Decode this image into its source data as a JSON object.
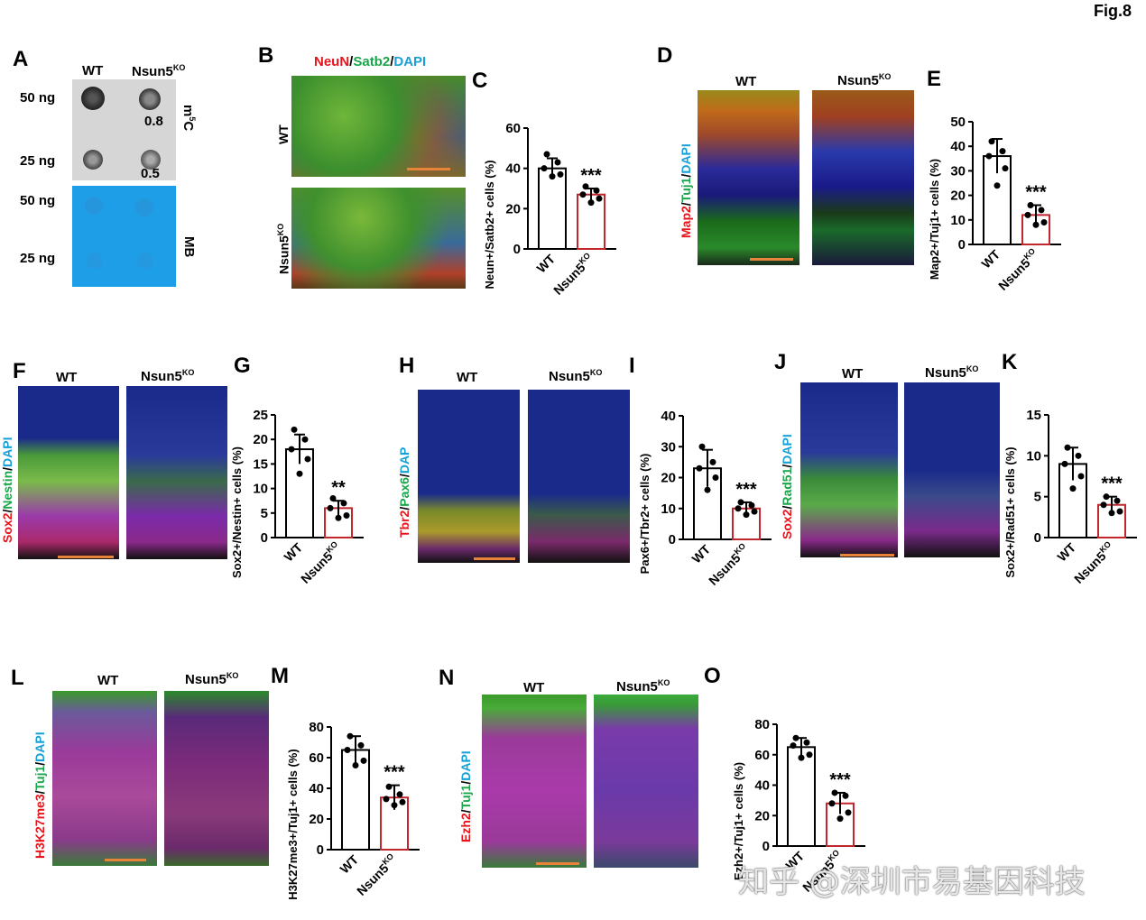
{
  "figure_label": "Fig.8",
  "panels": {
    "A": {
      "letter": "A",
      "col_wt": "WT",
      "col_ko": "Nsun5",
      "ko_sup": "KO",
      "row1": "50 ng",
      "row2": "25 ng",
      "row3": "50 ng",
      "row4": "25 ng",
      "val1": "0.8",
      "val2": "0.5",
      "side1": "m",
      "side1_sup": "5",
      "side1_tail": "C",
      "side2": "MB"
    },
    "B": {
      "letter": "B",
      "stain_red": "NeuN",
      "stain_green": "Satb2",
      "stain_blue": "DAPI",
      "row1": "WT",
      "row2": "Nsun5",
      "row2_sup": "KO"
    },
    "C": {
      "letter": "C"
    },
    "D": {
      "letter": "D",
      "col_wt": "WT",
      "col_ko": "Nsun5",
      "ko_sup": "KO",
      "stain_red": "Map2",
      "stain_green": "Tuj1",
      "stain_blue": "DAPI"
    },
    "E": {
      "letter": "E"
    },
    "F": {
      "letter": "F",
      "col_wt": "WT",
      "col_ko": "Nsun5",
      "ko_sup": "KO",
      "stain_red": "Sox2",
      "stain_green": "Nestin",
      "stain_blue": "DAPI"
    },
    "G": {
      "letter": "G"
    },
    "H": {
      "letter": "H",
      "col_wt": "WT",
      "col_ko": "Nsun5",
      "ko_sup": "KO",
      "stain_red": "Tbr2",
      "stain_green": "Pax6",
      "stain_blue": "DAP"
    },
    "I": {
      "letter": "I"
    },
    "J": {
      "letter": "J",
      "col_wt": "WT",
      "col_ko": "Nsun5",
      "ko_sup": "KO",
      "stain_red": "Sox2",
      "stain_green": "Rad51",
      "stain_blue": "DAPI"
    },
    "K": {
      "letter": "K"
    },
    "L": {
      "letter": "L",
      "col_wt": "WT",
      "col_ko": "Nsun5",
      "ko_sup": "KO",
      "stain_red": "H3K27me3",
      "stain_green": "Tuj1",
      "stain_blue": "DAPI"
    },
    "M": {
      "letter": "M"
    },
    "N": {
      "letter": "N",
      "col_wt": "WT",
      "col_ko": "Nsun5",
      "ko_sup": "KO",
      "stain_red": "Ezh2",
      "stain_green": "Tuj1",
      "stain_blue": "DAPI"
    },
    "O": {
      "letter": "O"
    }
  },
  "watermark": "知乎 @深圳市易基因科技",
  "colors": {
    "red": "#e8141b",
    "green": "#1aa64a",
    "blue": "#16a0d8",
    "ko_bar": "#c0272d",
    "scalebar": "#e8833a"
  },
  "chart_data": [
    {
      "id": "C",
      "type": "bar",
      "categories": [
        "WT",
        "Nsun5KO"
      ],
      "values": [
        40,
        27
      ],
      "error": [
        5,
        3
      ],
      "points": [
        [
          47,
          43,
          40,
          37,
          36
        ],
        [
          31,
          29,
          27,
          25,
          23
        ]
      ],
      "ylabel": "Neun+/Satb2+ cells (%)",
      "ylim": [
        0,
        60
      ],
      "ticks": [
        0,
        20,
        40,
        60
      ],
      "significance": "***"
    },
    {
      "id": "E",
      "type": "bar",
      "categories": [
        "WT",
        "Nsun5KO"
      ],
      "values": [
        36,
        12
      ],
      "error": [
        7,
        4
      ],
      "points": [
        [
          42,
          38,
          36,
          31,
          24
        ],
        [
          16,
          14,
          12,
          9,
          8
        ]
      ],
      "ylabel": "Map2+/Tuj1+ cells (%)",
      "ylim": [
        0,
        50
      ],
      "ticks": [
        0,
        10,
        20,
        30,
        40,
        50
      ],
      "significance": "***"
    },
    {
      "id": "G",
      "type": "bar",
      "categories": [
        "WT",
        "Nsun5KO"
      ],
      "values": [
        18,
        6
      ],
      "error": [
        3,
        1.5
      ],
      "points": [
        [
          22,
          20,
          18,
          16,
          13
        ],
        [
          8,
          7,
          6,
          4.5,
          4
        ]
      ],
      "ylabel": "Sox2+/Nestin+ cells (%)",
      "ylim": [
        0,
        25
      ],
      "ticks": [
        0,
        5,
        10,
        15,
        20,
        25
      ],
      "significance": "**"
    },
    {
      "id": "I",
      "type": "bar",
      "categories": [
        "WT",
        "Nsun5KO"
      ],
      "values": [
        23,
        10
      ],
      "error": [
        6,
        2
      ],
      "points": [
        [
          30,
          25,
          23,
          20,
          16
        ],
        [
          12,
          11,
          10,
          9,
          8
        ]
      ],
      "ylabel": "Pax6+/Tbr2+ cells (%)",
      "ylim": [
        0,
        40
      ],
      "ticks": [
        0,
        10,
        20,
        30,
        40
      ],
      "significance": "***"
    },
    {
      "id": "K",
      "type": "bar",
      "categories": [
        "WT",
        "Nsun5KO"
      ],
      "values": [
        9,
        4
      ],
      "error": [
        2,
        1
      ],
      "points": [
        [
          11,
          10,
          9,
          7.5,
          6
        ],
        [
          5,
          4.5,
          4,
          3.2,
          3
        ]
      ],
      "ylabel": "Sox2+/Rad51+ cells (%)",
      "ylim": [
        0,
        15
      ],
      "ticks": [
        0,
        5,
        10,
        15
      ],
      "significance": "***"
    },
    {
      "id": "M",
      "type": "bar",
      "categories": [
        "WT",
        "Nsun5KO"
      ],
      "values": [
        65,
        34
      ],
      "error": [
        9,
        8
      ],
      "points": [
        [
          74,
          68,
          65,
          58,
          55
        ],
        [
          41,
          36,
          33,
          31,
          29
        ]
      ],
      "ylabel": "H3K27me3+/Tuj1+ cells (%)",
      "ylim": [
        0,
        80
      ],
      "ticks": [
        0,
        20,
        40,
        60,
        80
      ],
      "significance": "***"
    },
    {
      "id": "O",
      "type": "bar",
      "categories": [
        "WT",
        "Nsun5KO"
      ],
      "values": [
        65,
        28
      ],
      "error": [
        6,
        7
      ],
      "points": [
        [
          71,
          68,
          66,
          60,
          58
        ],
        [
          35,
          33,
          28,
          22,
          18
        ]
      ],
      "ylabel": "Ezh2+/Tuj1+ cells (%)",
      "ylim": [
        0,
        80
      ],
      "ticks": [
        0,
        20,
        40,
        60,
        80
      ],
      "significance": "***"
    }
  ]
}
